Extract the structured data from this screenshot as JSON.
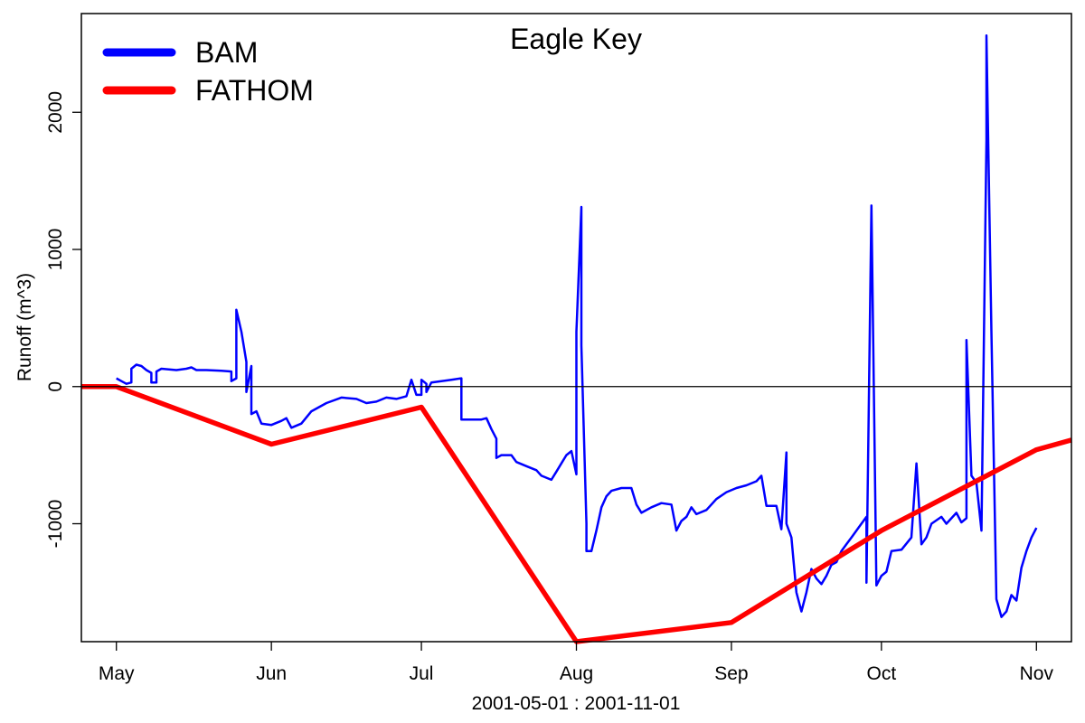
{
  "chart_data": {
    "type": "line",
    "title": "Eagle Key",
    "xlabel": "2001-05-01 : 2001-11-01",
    "ylabel": "Runoff (m^3)",
    "x_range": [
      "2001-04-24",
      "2001-11-08"
    ],
    "ylim": [
      -1860,
      2720
    ],
    "x_ticks": [
      {
        "date": "2001-05-01",
        "label": "May"
      },
      {
        "date": "2001-06-01",
        "label": "Jun"
      },
      {
        "date": "2001-07-01",
        "label": "Jul"
      },
      {
        "date": "2001-08-01",
        "label": "Aug"
      },
      {
        "date": "2001-09-01",
        "label": "Sep"
      },
      {
        "date": "2001-10-01",
        "label": "Oct"
      },
      {
        "date": "2001-11-01",
        "label": "Nov"
      }
    ],
    "y_ticks": [
      {
        "value": -1000,
        "label": "-1000"
      },
      {
        "value": 0,
        "label": "0"
      },
      {
        "value": 1000,
        "label": "1000"
      },
      {
        "value": 2000,
        "label": "2000"
      }
    ],
    "reference_line": 0,
    "grid": false,
    "legend_position": "top-left",
    "series": [
      {
        "name": "BAM",
        "color": "#0000ff",
        "points": [
          [
            "2001-05-01",
            60
          ],
          [
            "2001-05-02",
            40
          ],
          [
            "2001-05-03",
            20
          ],
          [
            "2001-05-04",
            30
          ],
          [
            "2001-05-04",
            130
          ],
          [
            "2001-05-05",
            160
          ],
          [
            "2001-05-06",
            150
          ],
          [
            "2001-05-07",
            120
          ],
          [
            "2001-05-08",
            100
          ],
          [
            "2001-05-08",
            30
          ],
          [
            "2001-05-09",
            30
          ],
          [
            "2001-05-09",
            110
          ],
          [
            "2001-05-10",
            130
          ],
          [
            "2001-05-13",
            120
          ],
          [
            "2001-05-15",
            130
          ],
          [
            "2001-05-16",
            140
          ],
          [
            "2001-05-17",
            120
          ],
          [
            "2001-05-19",
            120
          ],
          [
            "2001-05-22",
            115
          ],
          [
            "2001-05-24",
            110
          ],
          [
            "2001-05-24",
            40
          ],
          [
            "2001-05-25",
            60
          ],
          [
            "2001-05-25",
            560
          ],
          [
            "2001-05-26",
            400
          ],
          [
            "2001-05-27",
            180
          ],
          [
            "2001-05-27",
            -40
          ],
          [
            "2001-05-28",
            150
          ],
          [
            "2001-05-28",
            -200
          ],
          [
            "2001-05-29",
            -180
          ],
          [
            "2001-05-30",
            -270
          ],
          [
            "2001-06-01",
            -280
          ],
          [
            "2001-06-03",
            -250
          ],
          [
            "2001-06-04",
            -230
          ],
          [
            "2001-06-05",
            -300
          ],
          [
            "2001-06-07",
            -270
          ],
          [
            "2001-06-09",
            -180
          ],
          [
            "2001-06-12",
            -120
          ],
          [
            "2001-06-15",
            -80
          ],
          [
            "2001-06-18",
            -90
          ],
          [
            "2001-06-20",
            -120
          ],
          [
            "2001-06-22",
            -110
          ],
          [
            "2001-06-24",
            -80
          ],
          [
            "2001-06-26",
            -90
          ],
          [
            "2001-06-28",
            -70
          ],
          [
            "2001-06-29",
            50
          ],
          [
            "2001-06-30",
            -60
          ],
          [
            "2001-07-01",
            -60
          ],
          [
            "2001-07-01",
            50
          ],
          [
            "2001-07-02",
            20
          ],
          [
            "2001-07-02",
            -40
          ],
          [
            "2001-07-03",
            30
          ],
          [
            "2001-07-05",
            40
          ],
          [
            "2001-07-07",
            50
          ],
          [
            "2001-07-09",
            60
          ],
          [
            "2001-07-09",
            -240
          ],
          [
            "2001-07-11",
            -240
          ],
          [
            "2001-07-13",
            -240
          ],
          [
            "2001-07-14",
            -230
          ],
          [
            "2001-07-15",
            -310
          ],
          [
            "2001-07-16",
            -380
          ],
          [
            "2001-07-16",
            -520
          ],
          [
            "2001-07-17",
            -500
          ],
          [
            "2001-07-19",
            -500
          ],
          [
            "2001-07-20",
            -550
          ],
          [
            "2001-07-22",
            -580
          ],
          [
            "2001-07-24",
            -610
          ],
          [
            "2001-07-25",
            -650
          ],
          [
            "2001-07-27",
            -680
          ],
          [
            "2001-07-28",
            -620
          ],
          [
            "2001-07-29",
            -560
          ],
          [
            "2001-07-30",
            -500
          ],
          [
            "2001-07-31",
            -470
          ],
          [
            "2001-08-01",
            -640
          ],
          [
            "2001-08-01",
            400
          ],
          [
            "2001-08-02",
            1310
          ],
          [
            "2001-08-02",
            300
          ],
          [
            "2001-08-03",
            -1000
          ],
          [
            "2001-08-03",
            -1200
          ],
          [
            "2001-08-04",
            -1200
          ],
          [
            "2001-08-05",
            -1050
          ],
          [
            "2001-08-06",
            -880
          ],
          [
            "2001-08-07",
            -800
          ],
          [
            "2001-08-08",
            -760
          ],
          [
            "2001-08-10",
            -740
          ],
          [
            "2001-08-12",
            -740
          ],
          [
            "2001-08-13",
            -860
          ],
          [
            "2001-08-14",
            -920
          ],
          [
            "2001-08-16",
            -880
          ],
          [
            "2001-08-18",
            -850
          ],
          [
            "2001-08-20",
            -860
          ],
          [
            "2001-08-21",
            -1050
          ],
          [
            "2001-08-22",
            -980
          ],
          [
            "2001-08-23",
            -950
          ],
          [
            "2001-08-24",
            -880
          ],
          [
            "2001-08-25",
            -930
          ],
          [
            "2001-08-27",
            -900
          ],
          [
            "2001-08-29",
            -820
          ],
          [
            "2001-08-31",
            -770
          ],
          [
            "2001-09-02",
            -740
          ],
          [
            "2001-09-04",
            -720
          ],
          [
            "2001-09-06",
            -690
          ],
          [
            "2001-09-07",
            -650
          ],
          [
            "2001-09-08",
            -870
          ],
          [
            "2001-09-10",
            -870
          ],
          [
            "2001-09-11",
            -1040
          ],
          [
            "2001-09-12",
            -480
          ],
          [
            "2001-09-12",
            -1000
          ],
          [
            "2001-09-13",
            -1100
          ],
          [
            "2001-09-14",
            -1500
          ],
          [
            "2001-09-15",
            -1640
          ],
          [
            "2001-09-16",
            -1500
          ],
          [
            "2001-09-17",
            -1330
          ],
          [
            "2001-09-18",
            -1400
          ],
          [
            "2001-09-19",
            -1440
          ],
          [
            "2001-09-20",
            -1380
          ],
          [
            "2001-09-21",
            -1300
          ],
          [
            "2001-09-22",
            -1280
          ],
          [
            "2001-09-23",
            -1200
          ],
          [
            "2001-09-24",
            -1150
          ],
          [
            "2001-09-25",
            -1100
          ],
          [
            "2001-09-27",
            -1000
          ],
          [
            "2001-09-28",
            -950
          ],
          [
            "2001-09-28",
            -1430
          ],
          [
            "2001-09-29",
            1320
          ],
          [
            "2001-09-30",
            -1450
          ],
          [
            "2001-10-01",
            -1380
          ],
          [
            "2001-10-02",
            -1350
          ],
          [
            "2001-10-03",
            -1200
          ],
          [
            "2001-10-05",
            -1190
          ],
          [
            "2001-10-07",
            -1100
          ],
          [
            "2001-10-08",
            -560
          ],
          [
            "2001-10-09",
            -1150
          ],
          [
            "2001-10-10",
            -1100
          ],
          [
            "2001-10-11",
            -1000
          ],
          [
            "2001-10-13",
            -950
          ],
          [
            "2001-10-14",
            -1000
          ],
          [
            "2001-10-16",
            -920
          ],
          [
            "2001-10-17",
            -990
          ],
          [
            "2001-10-18",
            -960
          ],
          [
            "2001-10-18",
            340
          ],
          [
            "2001-10-19",
            -650
          ],
          [
            "2001-10-20",
            -700
          ],
          [
            "2001-10-21",
            -1050
          ],
          [
            "2001-10-22",
            1800
          ],
          [
            "2001-10-22",
            2560
          ],
          [
            "2001-10-23",
            400
          ],
          [
            "2001-10-24",
            -1550
          ],
          [
            "2001-10-25",
            -1680
          ],
          [
            "2001-10-26",
            -1640
          ],
          [
            "2001-10-27",
            -1520
          ],
          [
            "2001-10-28",
            -1560
          ],
          [
            "2001-10-29",
            -1320
          ],
          [
            "2001-10-30",
            -1200
          ],
          [
            "2001-10-31",
            -1100
          ],
          [
            "2001-11-01",
            -1030
          ]
        ]
      },
      {
        "name": "FATHOM",
        "color": "#ff0000",
        "points": [
          [
            "2001-04-24",
            0
          ],
          [
            "2001-05-01",
            0
          ],
          [
            "2001-06-01",
            -420
          ],
          [
            "2001-07-01",
            -150
          ],
          [
            "2001-08-01",
            -1860
          ],
          [
            "2001-09-01",
            -1720
          ],
          [
            "2001-10-01",
            -1050
          ],
          [
            "2001-11-01",
            -460
          ],
          [
            "2001-11-08",
            -390
          ]
        ]
      }
    ]
  }
}
